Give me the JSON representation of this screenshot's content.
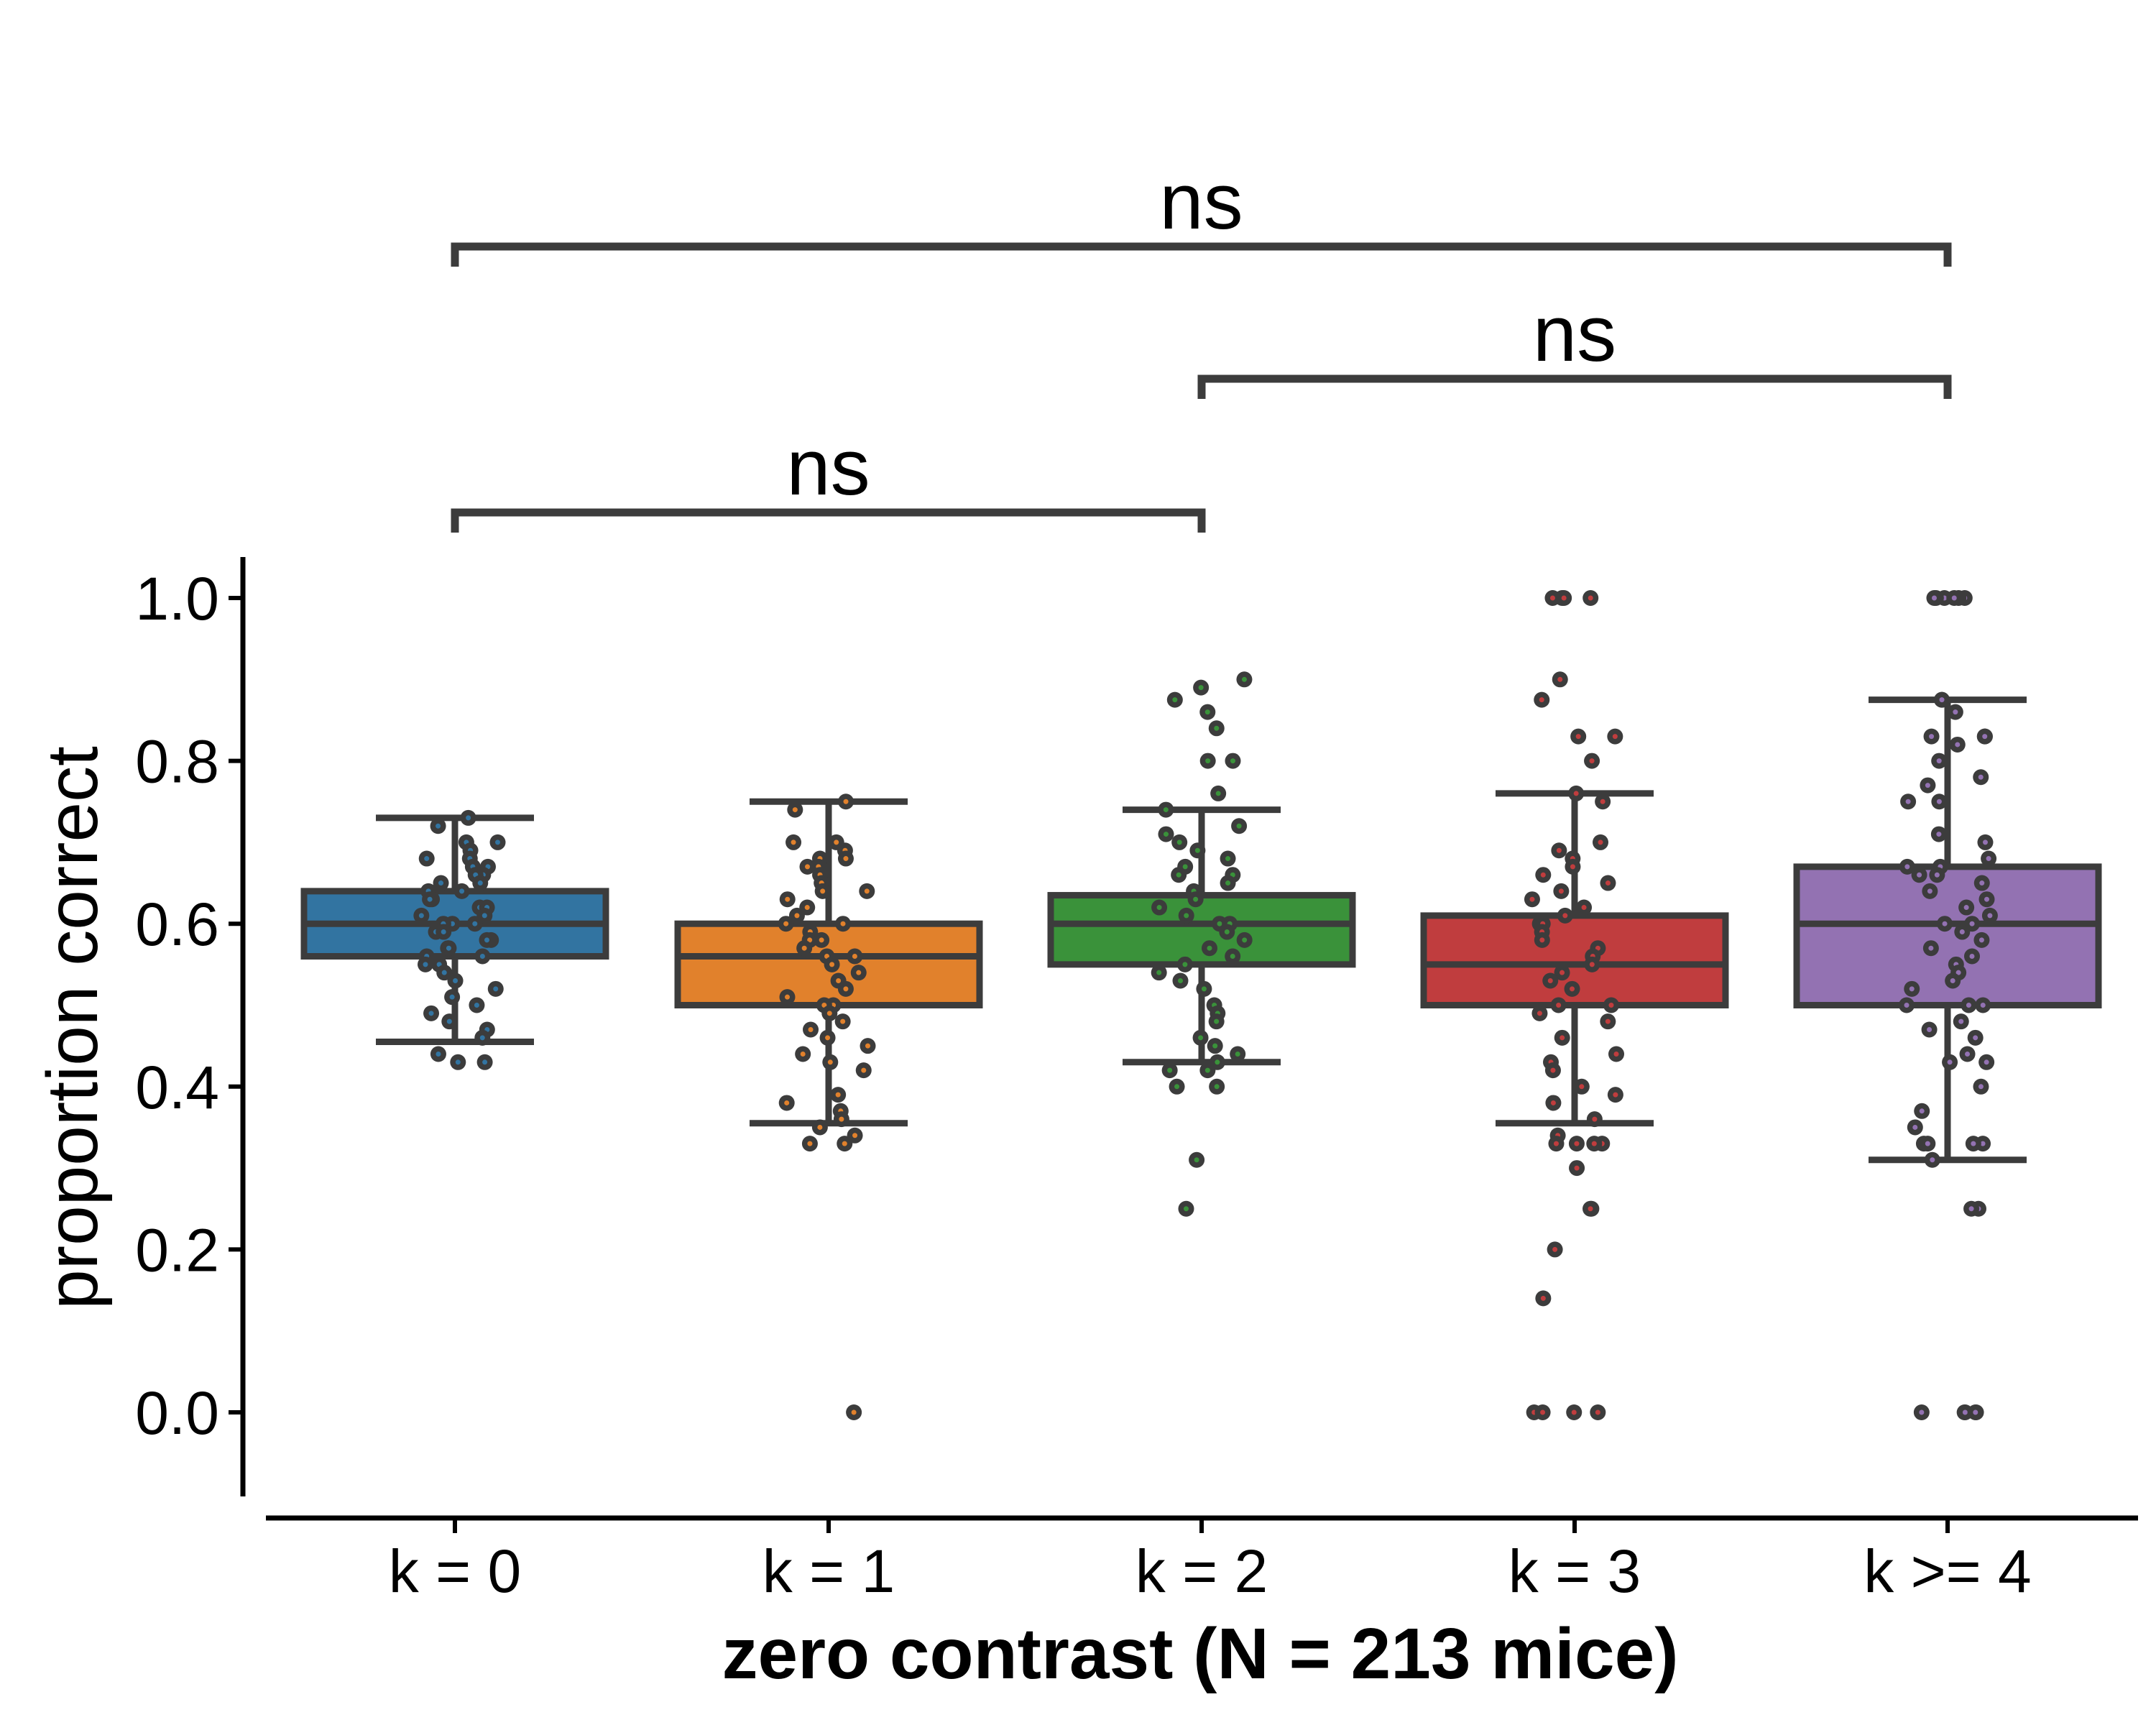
{
  "chart_data": {
    "type": "box",
    "xlabel": "zero contrast (N = 213 mice)",
    "ylabel": "proportion correct",
    "ylim": [
      -0.1,
      1.05
    ],
    "yticks": [
      0.0,
      0.2,
      0.4,
      0.6,
      0.8,
      1.0
    ],
    "ytick_labels": [
      "0.0",
      "0.2",
      "0.4",
      "0.6",
      "0.8",
      "1.0"
    ],
    "categories": [
      "k = 0",
      "k = 1",
      "k = 2",
      "k = 3",
      "k >= 4"
    ],
    "colors": [
      "#3274a1",
      "#e1812c",
      "#3a923a",
      "#c03d3e",
      "#9372b2"
    ],
    "edge_color": "#3c3c3c",
    "grid": false,
    "boxes": [
      {
        "whisker_low": 0.455,
        "q1": 0.56,
        "median": 0.6,
        "q3": 0.64,
        "whisker_high": 0.73
      },
      {
        "whisker_low": 0.355,
        "q1": 0.5,
        "median": 0.56,
        "q3": 0.6,
        "whisker_high": 0.75
      },
      {
        "whisker_low": 0.43,
        "q1": 0.55,
        "median": 0.6,
        "q3": 0.635,
        "whisker_high": 0.74
      },
      {
        "whisker_low": 0.355,
        "q1": 0.5,
        "median": 0.55,
        "q3": 0.61,
        "whisker_high": 0.76
      },
      {
        "whisker_low": 0.31,
        "q1": 0.5,
        "median": 0.6,
        "q3": 0.67,
        "whisker_high": 0.875
      }
    ],
    "points": [
      [
        0.73,
        0.72,
        0.7,
        0.7,
        0.69,
        0.68,
        0.68,
        0.67,
        0.67,
        0.66,
        0.66,
        0.65,
        0.65,
        0.64,
        0.64,
        0.63,
        0.63,
        0.62,
        0.62,
        0.61,
        0.61,
        0.6,
        0.6,
        0.6,
        0.59,
        0.59,
        0.58,
        0.58,
        0.57,
        0.57,
        0.56,
        0.56,
        0.55,
        0.55,
        0.54,
        0.53,
        0.52,
        0.51,
        0.5,
        0.49,
        0.48,
        0.47,
        0.46,
        0.44,
        0.43,
        0.43
      ],
      [
        0.75,
        0.74,
        0.7,
        0.7,
        0.69,
        0.68,
        0.68,
        0.67,
        0.67,
        0.66,
        0.65,
        0.64,
        0.64,
        0.63,
        0.62,
        0.61,
        0.6,
        0.6,
        0.59,
        0.58,
        0.58,
        0.57,
        0.56,
        0.56,
        0.55,
        0.54,
        0.53,
        0.52,
        0.51,
        0.5,
        0.5,
        0.49,
        0.48,
        0.47,
        0.46,
        0.45,
        0.44,
        0.43,
        0.42,
        0.39,
        0.38,
        0.37,
        0.36,
        0.35,
        0.34,
        0.33,
        0.33,
        0.0
      ],
      [
        0.9,
        0.89,
        0.875,
        0.86,
        0.84,
        0.8,
        0.8,
        0.76,
        0.74,
        0.72,
        0.71,
        0.7,
        0.69,
        0.68,
        0.67,
        0.66,
        0.66,
        0.65,
        0.64,
        0.63,
        0.62,
        0.61,
        0.6,
        0.6,
        0.59,
        0.58,
        0.57,
        0.56,
        0.55,
        0.54,
        0.53,
        0.52,
        0.5,
        0.49,
        0.48,
        0.46,
        0.45,
        0.44,
        0.43,
        0.42,
        0.42,
        0.4,
        0.4,
        0.31,
        0.25
      ],
      [
        1.0,
        1.0,
        1.0,
        1.0,
        0.9,
        0.875,
        0.83,
        0.83,
        0.8,
        0.76,
        0.75,
        0.7,
        0.69,
        0.68,
        0.67,
        0.66,
        0.65,
        0.64,
        0.63,
        0.62,
        0.61,
        0.6,
        0.6,
        0.59,
        0.58,
        0.57,
        0.56,
        0.55,
        0.54,
        0.53,
        0.52,
        0.5,
        0.5,
        0.49,
        0.48,
        0.46,
        0.44,
        0.43,
        0.42,
        0.4,
        0.39,
        0.38,
        0.36,
        0.34,
        0.33,
        0.33,
        0.33,
        0.33,
        0.3,
        0.25,
        0.25,
        0.2,
        0.14,
        0.0,
        0.0,
        0.0,
        0.0
      ],
      [
        1.0,
        1.0,
        1.0,
        1.0,
        1.0,
        1.0,
        0.875,
        0.875,
        0.86,
        0.83,
        0.83,
        0.83,
        0.82,
        0.8,
        0.78,
        0.77,
        0.75,
        0.75,
        0.71,
        0.7,
        0.68,
        0.67,
        0.67,
        0.66,
        0.66,
        0.65,
        0.64,
        0.63,
        0.62,
        0.61,
        0.6,
        0.6,
        0.59,
        0.58,
        0.57,
        0.56,
        0.55,
        0.54,
        0.53,
        0.52,
        0.5,
        0.5,
        0.5,
        0.48,
        0.47,
        0.46,
        0.44,
        0.43,
        0.43,
        0.4,
        0.37,
        0.35,
        0.33,
        0.33,
        0.33,
        0.33,
        0.31,
        0.25,
        0.25,
        0.0,
        0.0,
        0.0,
        0.0,
        0.0
      ]
    ],
    "significance": [
      {
        "from": 0,
        "to": 2,
        "label": "ns",
        "level": 1
      },
      {
        "from": 2,
        "to": 4,
        "label": "ns",
        "level": 2
      },
      {
        "from": 0,
        "to": 4,
        "label": "ns",
        "level": 3
      }
    ]
  }
}
